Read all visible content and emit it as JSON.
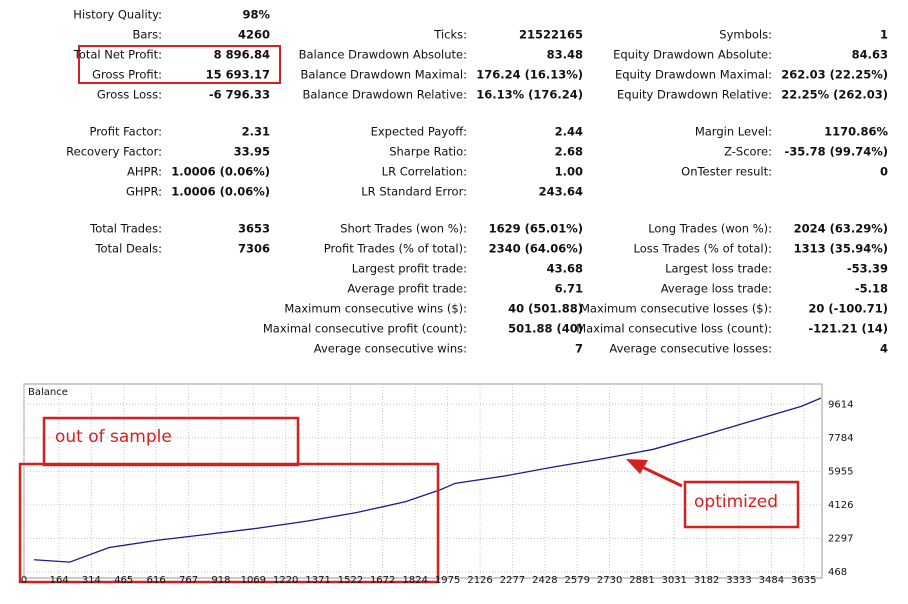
{
  "report": {
    "columns": [
      [
        {
          "label": "History Quality:",
          "value": "98%"
        },
        {
          "label": "Bars:",
          "value": "4260"
        },
        {
          "label": "Total Net Profit:",
          "value": "8 896.84"
        },
        {
          "label": "Gross Profit:",
          "value": "15 693.17"
        },
        {
          "label": "Gross Loss:",
          "value": "-6 796.33"
        },
        {
          "label": "Profit Factor:",
          "value": "2.31"
        },
        {
          "label": "Recovery Factor:",
          "value": "33.95"
        },
        {
          "label": "AHPR:",
          "value": "1.0006 (0.06%)"
        },
        {
          "label": "GHPR:",
          "value": "1.0006 (0.06%)"
        },
        {
          "label": "Total Trades:",
          "value": "3653"
        },
        {
          "label": "Total Deals:",
          "value": "7306"
        },
        null,
        null,
        null,
        null,
        null
      ],
      [
        null,
        {
          "label": "Ticks:",
          "value": "21522165"
        },
        {
          "label": "Balance Drawdown Absolute:",
          "value": "83.48"
        },
        {
          "label": "Balance Drawdown Maximal:",
          "value": "176.24 (16.13%)"
        },
        {
          "label": "Balance Drawdown Relative:",
          "value": "16.13% (176.24)"
        },
        {
          "label": "Expected Payoff:",
          "value": "2.44"
        },
        {
          "label": "Sharpe Ratio:",
          "value": "2.68"
        },
        {
          "label": "LR Correlation:",
          "value": "1.00"
        },
        {
          "label": "LR Standard Error:",
          "value": "243.64"
        },
        {
          "label": "Short Trades (won %):",
          "value": "1629 (65.01%)"
        },
        {
          "label": "Profit Trades (% of total):",
          "value": "2340 (64.06%)"
        },
        {
          "label": "Largest profit trade:",
          "value": "43.68"
        },
        {
          "label": "Average profit trade:",
          "value": "6.71"
        },
        {
          "label": "Maximum consecutive wins ($):",
          "value": "40 (501.88)"
        },
        {
          "label": "Maximal consecutive profit (count):",
          "value": "501.88 (40)"
        },
        {
          "label": "Average consecutive wins:",
          "value": "7"
        }
      ],
      [
        null,
        {
          "label": "Symbols:",
          "value": "1"
        },
        {
          "label": "Equity Drawdown Absolute:",
          "value": "84.63"
        },
        {
          "label": "Equity Drawdown Maximal:",
          "value": "262.03 (22.25%)"
        },
        {
          "label": "Equity Drawdown Relative:",
          "value": "22.25% (262.03)"
        },
        {
          "label": "Margin Level:",
          "value": "1170.86%"
        },
        {
          "label": "Z-Score:",
          "value": "-35.78 (99.74%)"
        },
        {
          "label": "OnTester result:",
          "value": "0"
        },
        null,
        {
          "label": "Long Trades (won %):",
          "value": "2024 (63.29%)"
        },
        {
          "label": "Loss Trades (% of total):",
          "value": "1313 (35.94%)"
        },
        {
          "label": "Largest loss trade:",
          "value": "-53.39"
        },
        {
          "label": "Average loss trade:",
          "value": "-5.18"
        },
        {
          "label": "Maximum consecutive losses ($):",
          "value": "20 (-100.71)"
        },
        {
          "label": "Maximal consecutive loss (count):",
          "value": "-121.21 (14)"
        },
        {
          "label": "Average consecutive losses:",
          "value": "4"
        }
      ]
    ]
  },
  "chart_data": {
    "type": "line",
    "title": "Balance",
    "color": "#1a1a8c",
    "grid": true,
    "x": [
      47,
      213,
      397,
      627,
      858,
      1088,
      1319,
      1549,
      1779,
      1941,
      2010,
      2240,
      2471,
      2701,
      2931,
      3162,
      3392,
      3623,
      3715
    ],
    "values": [
      1130,
      1000,
      1800,
      2200,
      2520,
      2850,
      3240,
      3700,
      4300,
      4950,
      5300,
      5700,
      6200,
      6650,
      7150,
      7900,
      8700,
      9500,
      9950
    ],
    "xlim": [
      0,
      3720
    ],
    "ylim": [
      135,
      10720
    ],
    "xticks": [
      0,
      164,
      314,
      465,
      616,
      767,
      918,
      1069,
      1220,
      1371,
      1522,
      1672,
      1824,
      1975,
      2126,
      2277,
      2428,
      2579,
      2730,
      2881,
      3031,
      3182,
      3333,
      3484,
      3635
    ],
    "yticks": [
      468,
      2297,
      4126,
      5955,
      7784,
      9614
    ],
    "annotations": [
      "out of sample",
      "optimized"
    ]
  }
}
